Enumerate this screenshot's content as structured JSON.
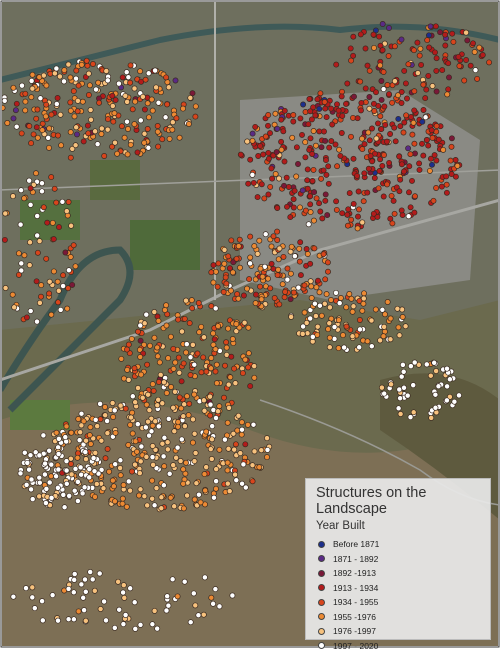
{
  "legend": {
    "title": "Structures on the Landscape",
    "subtitle": "Year Built",
    "items": [
      {
        "label": "Before 1871",
        "color": "#1c2f8c"
      },
      {
        "label": "1871 - 1892",
        "color": "#5a2a86"
      },
      {
        "label": "1892 -1913",
        "color": "#7a1838"
      },
      {
        "label": "1913 - 1934",
        "color": "#b31b1b"
      },
      {
        "label": "1934 - 1955",
        "color": "#d8451c"
      },
      {
        "label": "1955 -1976",
        "color": "#ec8a34"
      },
      {
        "label": "1976 -1997",
        "color": "#f7c27e"
      },
      {
        "label": "1997 - 2020",
        "color": "#ffffff"
      }
    ]
  }
}
